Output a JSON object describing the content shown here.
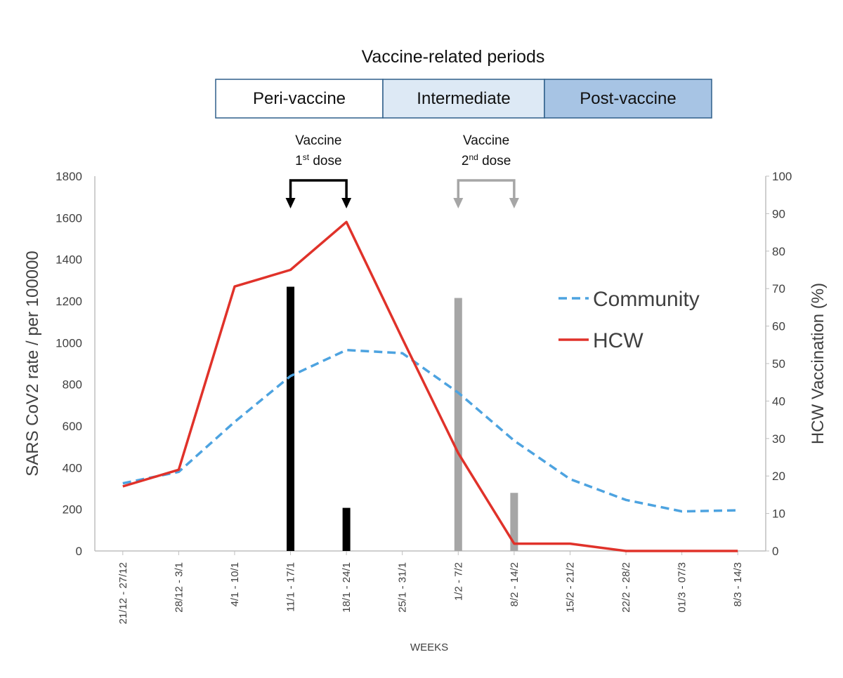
{
  "chart_data": {
    "type": "line",
    "title": "Vaccine-related periods",
    "xlabel": "WEEKS",
    "ylabel": "SARS CoV2  rate / per 100000",
    "y2label": "HCW  Vaccination (%)",
    "ylim": [
      0,
      1800
    ],
    "y2lim": [
      0,
      100
    ],
    "yticks": [
      "0",
      "200",
      "400",
      "600",
      "800",
      "1000",
      "1200",
      "1400",
      "1600",
      "1800"
    ],
    "y2ticks": [
      "0",
      "10",
      "20",
      "30",
      "40",
      "50",
      "60",
      "70",
      "80",
      "90",
      "100"
    ],
    "grid": false,
    "legend_position": "right",
    "categories": [
      "21/12 - 27/12",
      "28/12 - 3/1",
      "4/1 - 10/1",
      "11/1 - 17/1",
      "18/1 - 24/1",
      "25/1 - 31/1",
      "1/2 - 7/2",
      "8/2 - 14/2",
      "15/2 - 21/2",
      "22/2 - 28/2",
      "01/3 - 07/3",
      "8/3 - 14/3"
    ],
    "series": [
      {
        "name": "Community",
        "axis": "left",
        "style": "dashed",
        "color": "#4da3e0",
        "values": [
          325,
          380,
          620,
          840,
          965,
          950,
          760,
          530,
          345,
          245,
          190,
          195
        ]
      },
      {
        "name": "HCW",
        "axis": "left",
        "style": "solid",
        "color": "#e0322a",
        "values": [
          310,
          390,
          1270,
          1350,
          1580,
          1020,
          470,
          35,
          35,
          0,
          0,
          0
        ]
      }
    ],
    "bars": [
      {
        "dose": "1st",
        "color": "#000000",
        "axis": "right",
        "values": [
          0,
          0,
          0,
          70.5,
          11.5,
          0,
          0,
          0,
          0,
          0,
          0,
          0
        ]
      },
      {
        "dose": "2nd",
        "color": "#a6a6a6",
        "axis": "right",
        "values": [
          0,
          0,
          0,
          0,
          0,
          0,
          67.5,
          15.5,
          0,
          0,
          0,
          0
        ]
      }
    ],
    "periods": [
      {
        "label": "Peri-vaccine",
        "color": "#ffffff"
      },
      {
        "label": "Intermediate",
        "color": "#dde9f5"
      },
      {
        "label": "Post-vaccine",
        "color": "#a7c4e4"
      }
    ],
    "annotations": [
      {
        "line1": "Vaccine",
        "num": "1",
        "sup": "st",
        "word": " dose",
        "color": "#000000",
        "from": "11/1 - 17/1",
        "to": "18/1 - 24/1"
      },
      {
        "line1": "Vaccine",
        "num": "2",
        "sup": "nd",
        "word": " dose",
        "color": "#a6a6a6",
        "from": "1/2 - 7/2",
        "to": "8/2 - 14/2"
      }
    ]
  }
}
